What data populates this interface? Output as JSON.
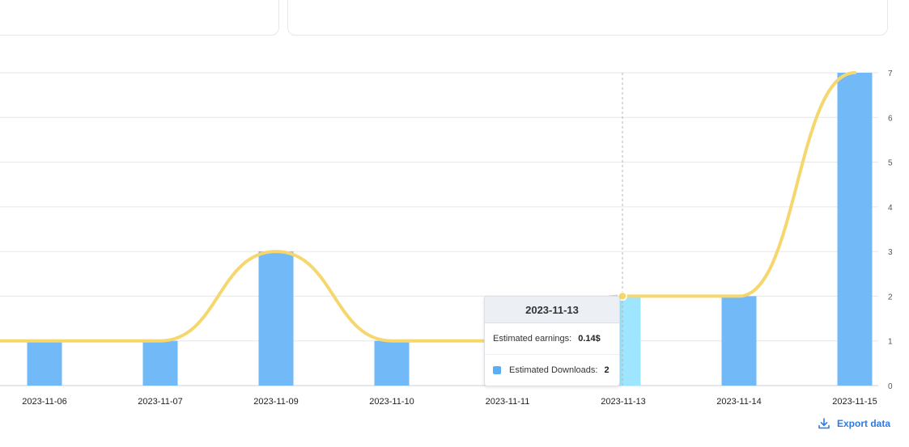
{
  "chart_data": {
    "type": "bar",
    "categories": [
      "2023-11-06",
      "2023-11-07",
      "2023-11-09",
      "2023-11-10",
      "2023-11-11",
      "2023-11-13",
      "2023-11-14",
      "2023-11-15"
    ],
    "series": [
      {
        "name": "Estimated Downloads",
        "type": "bar",
        "values": [
          1,
          1,
          3,
          1,
          1,
          2,
          2,
          7
        ],
        "color": "#72b9f7",
        "highlight_color": "#9ee6ff"
      },
      {
        "type": "line",
        "values": [
          1,
          1,
          3,
          1,
          1,
          2,
          2,
          7
        ],
        "color": "#f5d76e"
      }
    ],
    "y_ticks": [
      "0",
      "1",
      "2",
      "3",
      "4",
      "5",
      "6",
      "7"
    ],
    "ylim": [
      0,
      7
    ],
    "y_axis_side": "right",
    "grid": true,
    "highlight_index": 5
  },
  "tooltip": {
    "title": "2023-11-13",
    "earnings_label": "Estimated earnings:",
    "earnings_value": "0.14$",
    "downloads_label": "Estimated Downloads:",
    "downloads_value": "2"
  },
  "export": {
    "label": "Export data",
    "icon": "download-icon",
    "color": "#2c7be5"
  }
}
